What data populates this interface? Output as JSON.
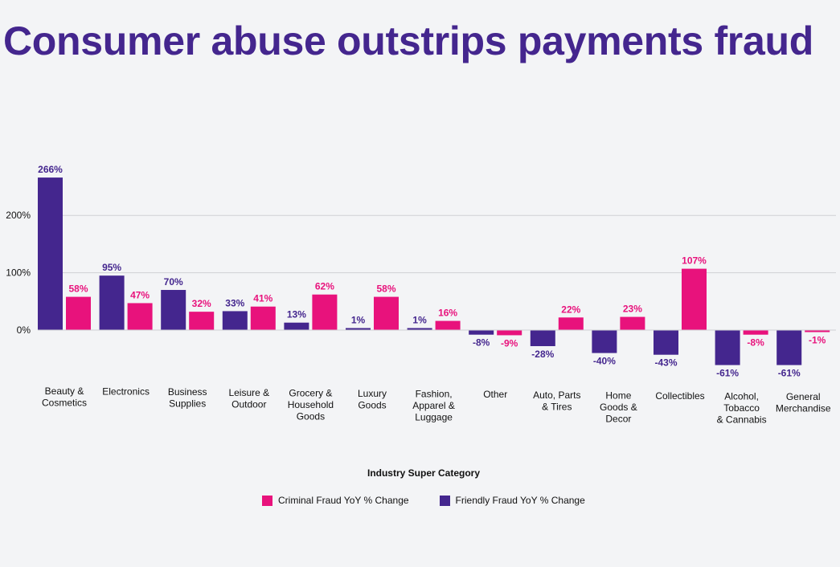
{
  "title": "Consumer abuse outstrips payments fraud",
  "chart_data": {
    "type": "bar",
    "title": "Consumer abuse outstrips payments fraud",
    "xlabel": "Industry Super Category",
    "ylabel": "",
    "ylim": [
      -80,
      270
    ],
    "yticks": [
      "0%",
      "100%",
      "200%"
    ],
    "grid": true,
    "legend_position": "bottom",
    "categories": [
      [
        "Beauty &",
        "Cosmetics"
      ],
      [
        "Electronics"
      ],
      [
        "Business",
        "Supplies"
      ],
      [
        "Leisure &",
        "Outdoor"
      ],
      [
        "Grocery &",
        "Household",
        "Goods"
      ],
      [
        "Luxury",
        "Goods"
      ],
      [
        "Fashion,",
        "Apparel &",
        "Luggage"
      ],
      [
        "Other"
      ],
      [
        "Auto, Parts",
        "& Tires"
      ],
      [
        "Home",
        "Goods &",
        "Decor"
      ],
      [
        "Collectibles"
      ],
      [
        "Alcohol,",
        "Tobacco",
        "& Cannabis"
      ],
      [
        "General",
        "Merchandise"
      ]
    ],
    "series": [
      {
        "name": "Friendly Fraud YoY % Change",
        "color": "#44268e",
        "values": [
          266,
          95,
          70,
          33,
          13,
          1,
          1,
          -8,
          -28,
          -40,
          -43,
          -61,
          -61
        ]
      },
      {
        "name": "Criminal Fraud YoY % Change",
        "color": "#e8127c",
        "values": [
          58,
          47,
          32,
          41,
          62,
          58,
          16,
          -9,
          22,
          23,
          107,
          -8,
          -1
        ]
      }
    ]
  },
  "legend": [
    {
      "label": "Criminal Fraud YoY % Change",
      "color": "#e8127c"
    },
    {
      "label": "Friendly Fraud YoY % Change",
      "color": "#44268e"
    }
  ]
}
